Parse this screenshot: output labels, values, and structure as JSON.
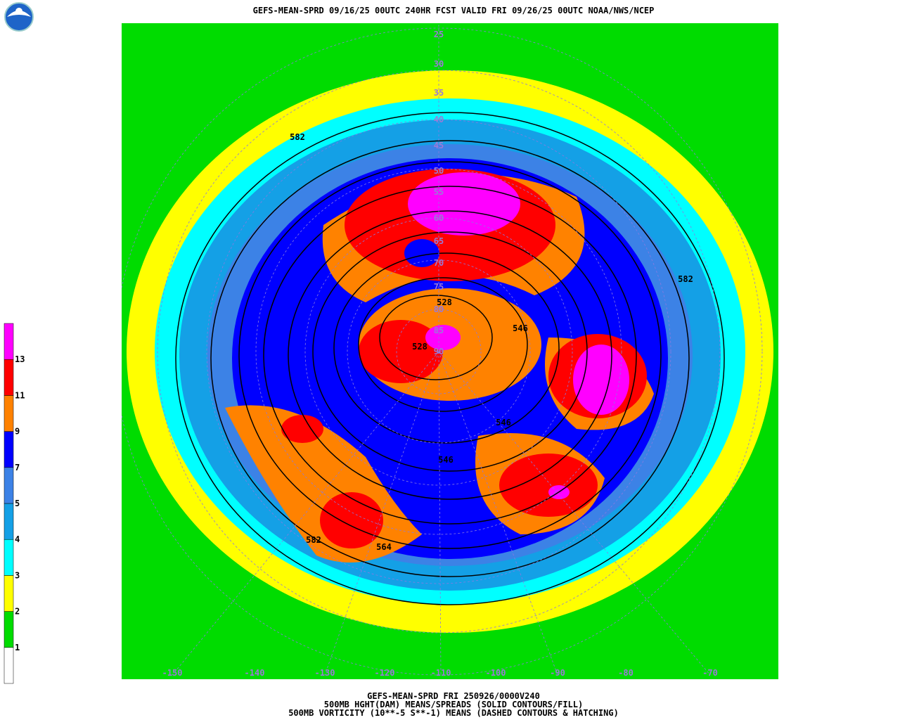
{
  "header": {
    "title": "GEFS-MEAN-SPRD 09/16/25 00UTC 240HR FCST VALID FRI 09/26/25 00UTC NOAA/NWS/NCEP"
  },
  "colorbar": {
    "levels": [
      1,
      2,
      3,
      4,
      5,
      7,
      9,
      11,
      13
    ],
    "colors": [
      "#ffffff",
      "#00dc00",
      "#ffff00",
      "#00ffff",
      "#14a0e6",
      "#3c82e6",
      "#0000ff",
      "#ff8200",
      "#ff0000",
      "#ff00ff"
    ]
  },
  "map": {
    "contour_labels": [
      "582",
      "582",
      "546",
      "546",
      "546",
      "528",
      "528",
      "564",
      "582"
    ],
    "latitude_labels": [
      25,
      30,
      35,
      40,
      45,
      50,
      55,
      60,
      65,
      70,
      75,
      80,
      85,
      90
    ],
    "longitude_labels": [
      -150,
      -140,
      -130,
      -120,
      -110,
      -100,
      -90,
      -80,
      -70
    ]
  },
  "footer": {
    "lines": [
      "GEFS-MEAN-SPRD FRI 250926/0000V240",
      "500MB HGHT(DAM) MEANS/SPREADS (SOLID CONTOURS/FILL)",
      "500MB VORTICITY (10**-5 S**-1) MEANS (DASHED CONTOURS & HATCHING)"
    ]
  }
}
